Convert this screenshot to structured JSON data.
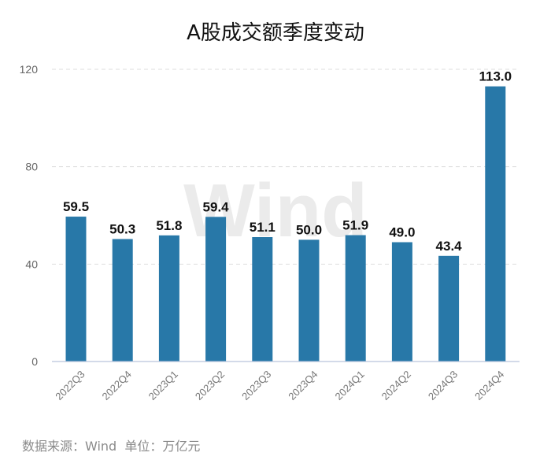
{
  "chart_data": {
    "type": "bar",
    "title": "A股成交额季度变动",
    "categories": [
      "2022Q3",
      "2022Q4",
      "2023Q1",
      "2023Q2",
      "2023Q3",
      "2023Q4",
      "2024Q1",
      "2024Q2",
      "2024Q3",
      "2024Q4"
    ],
    "values": [
      59.5,
      50.3,
      51.8,
      59.4,
      51.1,
      50.0,
      51.9,
      49.0,
      43.4,
      113.0
    ],
    "value_labels": [
      "59.5",
      "50.3",
      "51.8",
      "59.4",
      "51.1",
      "50.0",
      "51.9",
      "49.0",
      "43.4",
      "113.0"
    ],
    "ylim": [
      0,
      120
    ],
    "yticks": [
      0,
      40,
      80,
      120
    ],
    "ytick_labels": [
      "0",
      "40",
      "80",
      "120"
    ],
    "grid": true,
    "bar_color": "#2878a8",
    "grid_color": "#dddddd",
    "axis_color": "#b9c4dc",
    "xlabel": "",
    "ylabel": ""
  },
  "watermark": "Wind",
  "source_text": "数据来源：Wind  单位：万亿元"
}
